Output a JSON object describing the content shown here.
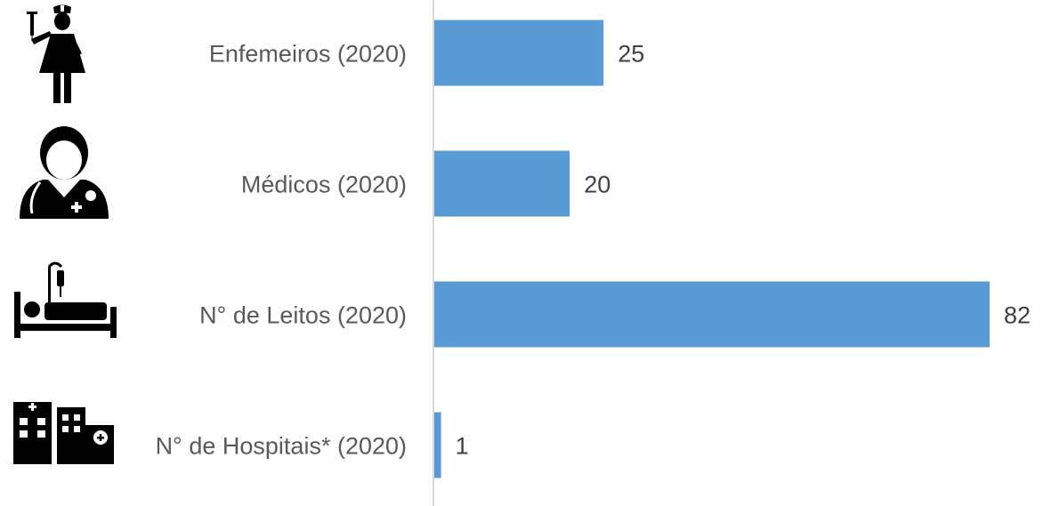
{
  "chart_data": {
    "type": "bar",
    "orientation": "horizontal",
    "categories": [
      "Enfemeiros (2020)",
      "Médicos (2020)",
      "N° de Leitos (2020)",
      "N° de Hospitais* (2020)"
    ],
    "values": [
      25,
      20,
      82,
      1
    ],
    "data_labels": [
      "25",
      "20",
      "82",
      "1"
    ],
    "icons": [
      "nurse-icon",
      "doctor-icon",
      "hospital-bed-icon",
      "hospital-buildings-icon"
    ],
    "bar_color": "#5B9BD5",
    "xlim": [
      0,
      82
    ],
    "grid": false,
    "legend": "none",
    "title": "",
    "xlabel": "",
    "ylabel": ""
  }
}
